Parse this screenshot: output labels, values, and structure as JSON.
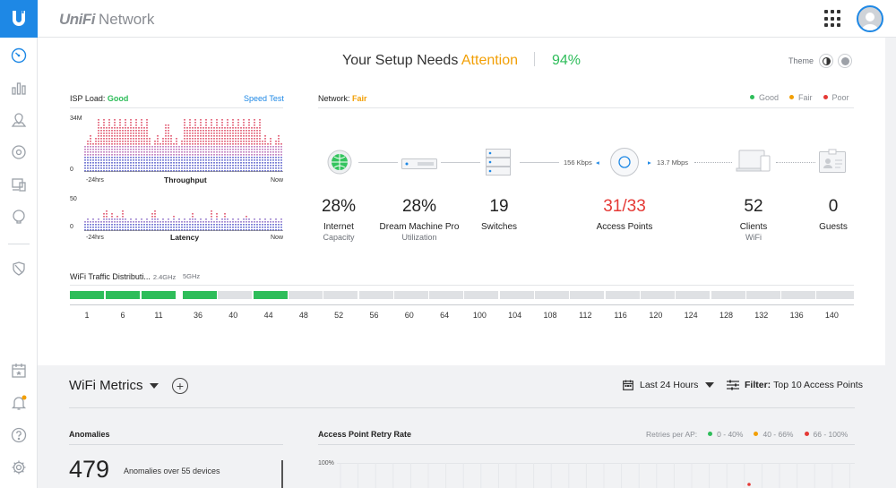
{
  "app": {
    "brand": "UniFi",
    "name": "Network"
  },
  "headline": {
    "prefix": "Your Setup Needs",
    "attention": "Attention",
    "score": "94%"
  },
  "theme": {
    "label": "Theme"
  },
  "isp": {
    "title": "ISP Load:",
    "status": "Good",
    "speed_test": "Speed Test",
    "throughput": {
      "title": "Throughput",
      "y_max": "34M",
      "y_min": "0",
      "x_start": "-24hrs",
      "x_end": "Now"
    },
    "latency": {
      "title": "Latency",
      "y_max": "50",
      "y_min": "0",
      "x_start": "-24hrs",
      "x_end": "Now"
    }
  },
  "network": {
    "title": "Network:",
    "status": "Fair",
    "legend": [
      {
        "label": "Good",
        "color": "#2ebd5a"
      },
      {
        "label": "Fair",
        "color": "#f29f05"
      },
      {
        "label": "Poor",
        "color": "#e53935"
      }
    ],
    "links": {
      "uplink_speed": "156 Kbps",
      "client_speed": "13.7 Mbps"
    },
    "stats": [
      {
        "value": "28%",
        "name": "Internet",
        "sub": "Capacity",
        "icon": "globe-icon"
      },
      {
        "value": "28%",
        "name": "Dream Machine Pro",
        "sub": "Utilization",
        "icon": "gateway-icon"
      },
      {
        "value": "19",
        "name": "Switches",
        "sub": "",
        "icon": "switch-icon"
      },
      {
        "value": "31/33",
        "name": "Access Points",
        "sub": "",
        "icon": "access-point-icon",
        "alert": true
      },
      {
        "value": "52",
        "name": "Clients",
        "sub": "WiFi",
        "icon": "clients-icon"
      },
      {
        "value": "0",
        "name": "Guests",
        "sub": "",
        "icon": "guest-badge-icon"
      }
    ]
  },
  "wifi_traffic": {
    "title": "WiFi Traffic Distributi...",
    "band_24": "2.4GHz",
    "band_5": "5GHz",
    "channels_24": [
      "1",
      "6",
      "11"
    ],
    "channels_5": [
      "36",
      "40",
      "44",
      "48",
      "52",
      "56",
      "60",
      "64",
      "100",
      "104",
      "108",
      "112",
      "116",
      "120",
      "124",
      "128",
      "132",
      "136",
      "140"
    ],
    "active_24": [
      true,
      true,
      true
    ],
    "active_5": [
      true,
      false,
      true,
      false,
      false,
      false,
      false,
      false,
      false,
      false,
      false,
      false,
      false,
      false,
      false,
      false,
      false,
      false,
      false
    ]
  },
  "metrics": {
    "title": "WiFi Metrics",
    "range": "Last 24 Hours",
    "filter_label": "Filter:",
    "filter_value": "Top 10 Access Points",
    "anomalies": {
      "title": "Anomalies",
      "count": "479",
      "desc": "Anomalies over 55 devices"
    },
    "retry": {
      "title": "Access Point Retry Rate",
      "legend_label": "Retries per AP:",
      "legend": [
        {
          "label": "0 - 40%",
          "color": "#2ebd5a"
        },
        {
          "label": "40 - 66%",
          "color": "#f29f05"
        },
        {
          "label": "66 - 100%",
          "color": "#e53935"
        }
      ],
      "y_top": "100%"
    }
  },
  "sidebar": {
    "items": [
      "dashboard-icon",
      "statistics-icon",
      "map-icon",
      "devices-icon",
      "clients-icon",
      "insights-icon",
      "threat-shield-icon",
      "events-calendar-icon",
      "alarm-bell-icon",
      "help-icon",
      "settings-gear-icon"
    ]
  }
}
